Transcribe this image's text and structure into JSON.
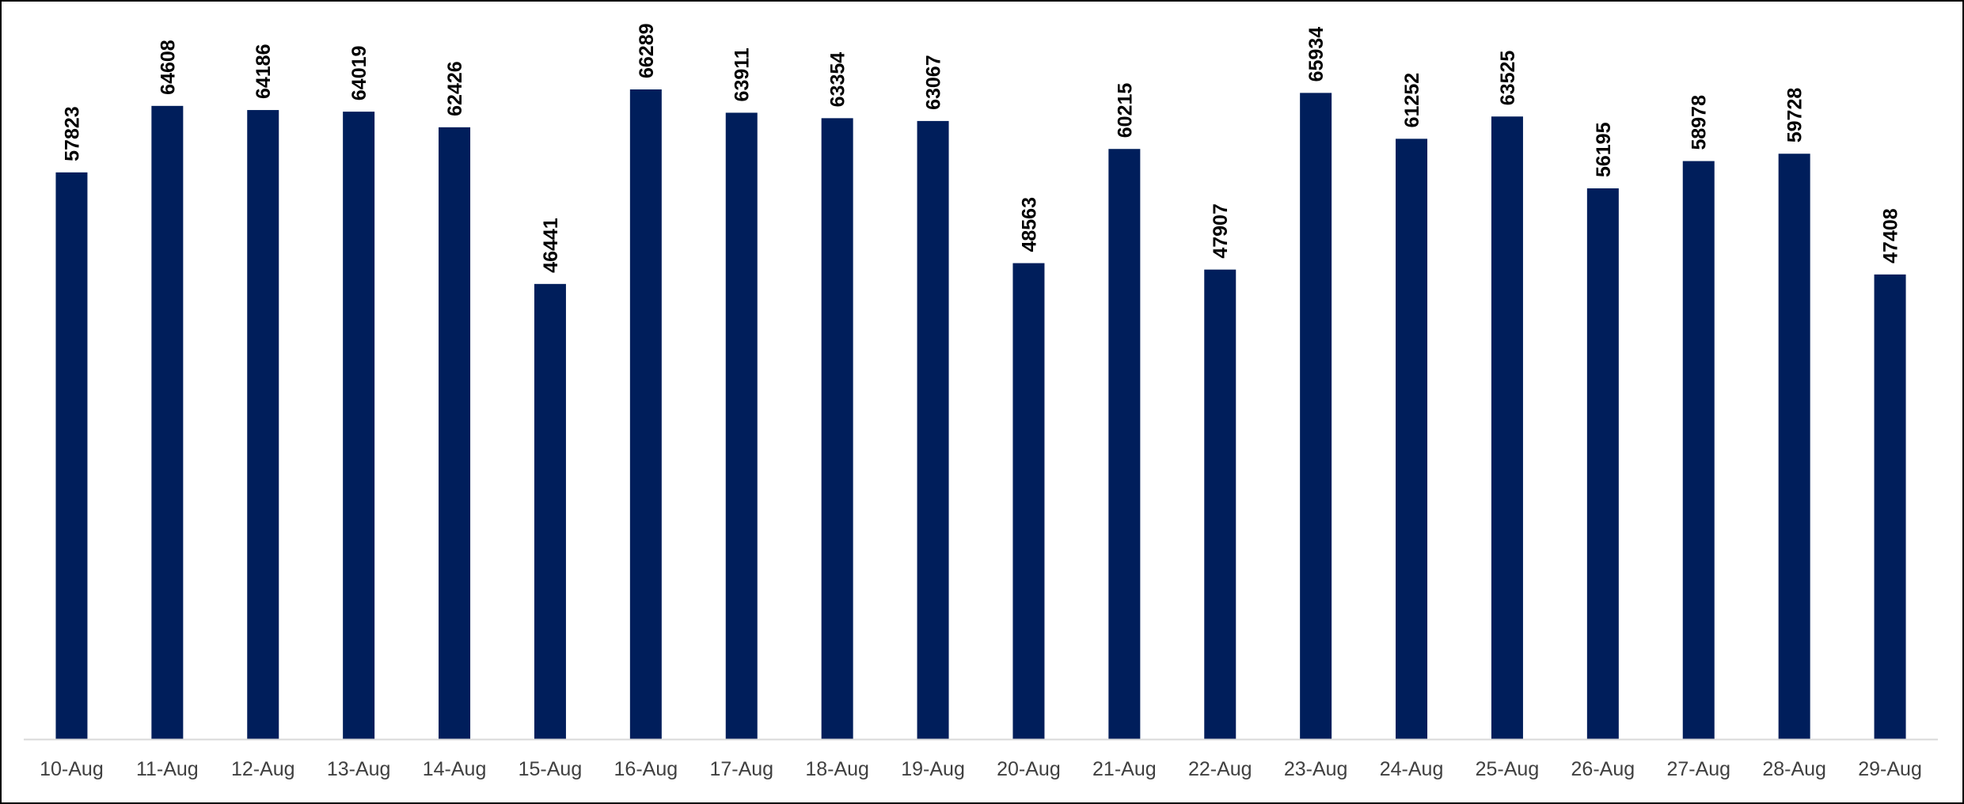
{
  "chart_data": {
    "type": "bar",
    "title": "",
    "xlabel": "",
    "ylabel": "",
    "categories": [
      "10-Aug",
      "11-Aug",
      "12-Aug",
      "13-Aug",
      "14-Aug",
      "15-Aug",
      "16-Aug",
      "17-Aug",
      "18-Aug",
      "19-Aug",
      "20-Aug",
      "21-Aug",
      "22-Aug",
      "23-Aug",
      "24-Aug",
      "25-Aug",
      "26-Aug",
      "27-Aug",
      "28-Aug",
      "29-Aug"
    ],
    "values": [
      57823,
      64608,
      64186,
      64019,
      62426,
      46441,
      66289,
      63911,
      63354,
      63067,
      48563,
      60215,
      47907,
      65934,
      61252,
      63525,
      56195,
      58978,
      59728,
      47408
    ],
    "ylim": [
      0,
      66289
    ],
    "grid": false,
    "legend": "none",
    "data_labels": true,
    "bar_color": "#001E5B",
    "axis_color": "#D9D9D9"
  }
}
